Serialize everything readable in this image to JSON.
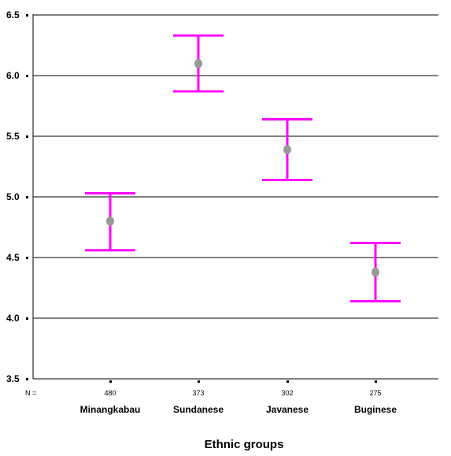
{
  "chart_data": {
    "type": "errorbar",
    "categories": [
      "Minangkabau",
      "Sundanese",
      "Javanese",
      "Buginese"
    ],
    "n_label": "N =",
    "n_values": [
      "480",
      "373",
      "302",
      "275"
    ],
    "means": [
      4.8,
      6.1,
      5.39,
      4.38
    ],
    "lower": [
      4.56,
      5.87,
      5.14,
      4.14
    ],
    "upper": [
      5.03,
      6.33,
      5.64,
      4.62
    ],
    "ylim": [
      3.5,
      6.5
    ],
    "yticks": [
      3.5,
      4.0,
      4.5,
      5.0,
      5.5,
      6.0,
      6.5
    ],
    "ytick_labels": [
      "3.5",
      "4.0",
      "4.5",
      "5.0",
      "5.5",
      "6.0",
      "6.5"
    ],
    "xlabel": "Ethnic groups",
    "ylabel": "",
    "title": "",
    "grid": true,
    "colors": {
      "errorbar": "#ff00ff",
      "marker": "#999999",
      "grid": "#000000"
    }
  }
}
